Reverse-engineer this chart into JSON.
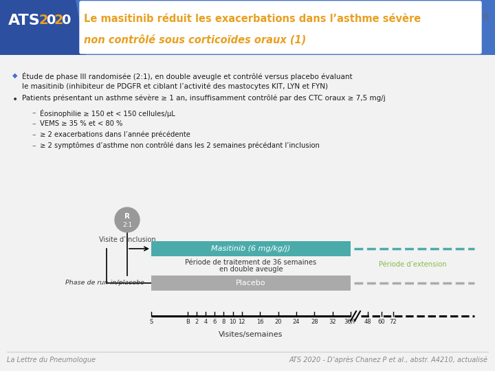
{
  "title_line1": "Le masitinib réduit les exacerbations dans l’asthme sévère",
  "title_line2": "non contrôlé sous corticoïdes oraux (1)",
  "slide_number": "6",
  "header_bg": "#4472c4",
  "title_box_bg": "#ffffff",
  "title_color": "#e8a020",
  "logo_text1": "ATS",
  "logo_text2": "2020",
  "logo_bg": "#4472c4",
  "logo_text_color": "#e8a020",
  "body_bg": "#f2f2f2",
  "bullet1_text_line1": "Étude de phase III randomisée (2:1), en double aveugle et contrôlé versus placebo évaluant",
  "bullet1_text_line2": "le masitinib (inhibiteur de PDGFR et ciblant l’activité des mastocytes KIT, LYN et FYN)",
  "bullet2_text": "Patients présentant un asthme sévère ≥ 1 an, insuffisamment contrôlé par des CTC oraux ≥ 7,5 mg/j",
  "sub_bullets": [
    "Éosinophilie ≥ 150 et < 150 cellules/μL",
    "VEMS ≥ 35 % et < 80 %",
    "≥ 2 exacerbations dans l’année précédente",
    "≥ 2 symptômes d’asthme non contrôlé dans les 2 semaines précédant l’inclusion"
  ],
  "visit_label": "Visite d’inclusion",
  "masitinib_label": "Masitinib (6 mg/kg/j)",
  "masitinib_color": "#4aabaa",
  "placebo_label": "Placebo",
  "placebo_color": "#aaaaaa",
  "treatment_period_label_line1": "Période de traitement de 36 semaines",
  "treatment_period_label_line2": "en double aveugle",
  "extension_label": "Période d’extension",
  "extension_color": "#88bb44",
  "runin_label": "Phase de run-in/placebo",
  "axis_label": "Visites/semaines",
  "tick_labels": [
    "S",
    "B",
    "2",
    "4",
    "6",
    "8",
    "10",
    "12",
    "16",
    "20",
    "24",
    "28",
    "32",
    "36/F",
    "48",
    "60",
    "72"
  ],
  "footer_left": "La Lettre du Pneumologue",
  "footer_right": "ATS 2020 - D’après Chanez P et al., abstr. A4210, actualisé",
  "footer_color": "#888888"
}
